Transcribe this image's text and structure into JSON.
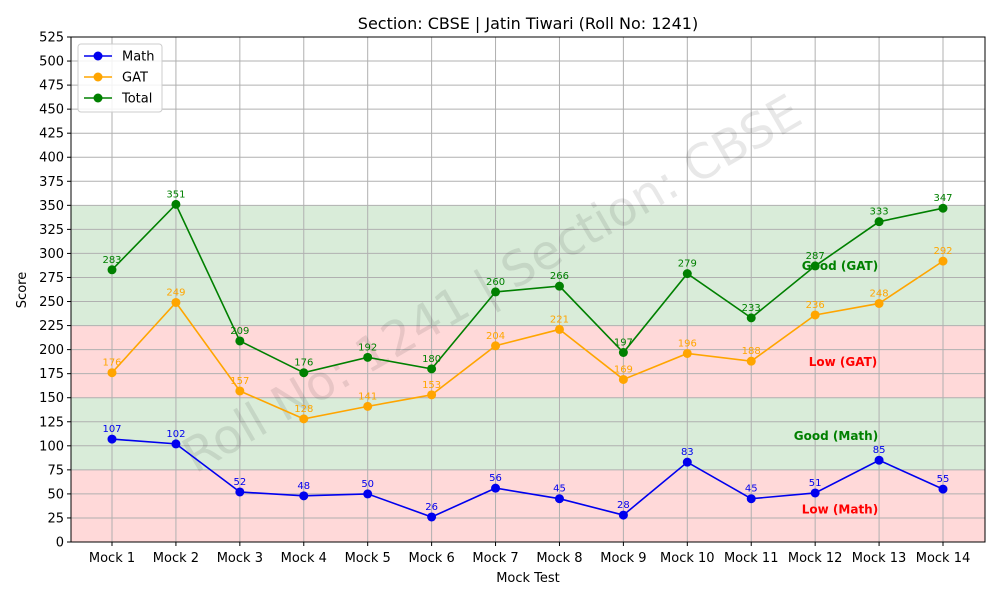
{
  "chart_data": {
    "type": "line",
    "title": "Section: CBSE | Jatin Tiwari (Roll No: 1241)",
    "xlabel": "Mock Test",
    "ylabel": "Score",
    "ylim": [
      0,
      525
    ],
    "yticks": [
      0,
      25,
      50,
      75,
      100,
      125,
      150,
      175,
      200,
      225,
      250,
      275,
      300,
      325,
      350,
      375,
      400,
      425,
      450,
      475,
      500,
      525
    ],
    "grid": true,
    "legend_position": "top-left",
    "categories": [
      "Mock 1",
      "Mock 2",
      "Mock 3",
      "Mock 4",
      "Mock 5",
      "Mock 6",
      "Mock 7",
      "Mock 8",
      "Mock 9",
      "Mock 10",
      "Mock 11",
      "Mock 12",
      "Mock 13",
      "Mock 14"
    ],
    "series": [
      {
        "name": "Math",
        "color": "#0000ee",
        "values": [
          107,
          102,
          52,
          48,
          50,
          26,
          56,
          45,
          28,
          83,
          45,
          51,
          85,
          55
        ]
      },
      {
        "name": "GAT",
        "color": "#ffa500",
        "values": [
          176,
          249,
          157,
          128,
          141,
          153,
          204,
          221,
          169,
          196,
          188,
          236,
          248,
          292
        ]
      },
      {
        "name": "Total",
        "color": "#008000",
        "values": [
          283,
          351,
          209,
          176,
          192,
          180,
          260,
          266,
          197,
          279,
          233,
          287,
          333,
          347
        ]
      }
    ],
    "bands": [
      {
        "from": 0,
        "to": 75,
        "color": "#ffd9d9",
        "label": "Low (Math)",
        "label_color": "#ff0000"
      },
      {
        "from": 75,
        "to": 150,
        "color": "#d9ecd9",
        "label": "Good (Math)",
        "label_color": "#008000"
      },
      {
        "from": 150,
        "to": 225,
        "color": "#ffd9d9",
        "label": "Low (GAT)",
        "label_color": "#ff0000"
      },
      {
        "from": 225,
        "to": 350,
        "color": "#d9ecd9",
        "label": "Good (GAT)",
        "label_color": "#008000"
      }
    ],
    "watermark": "Roll No: 1241 | Section: CBSE"
  }
}
